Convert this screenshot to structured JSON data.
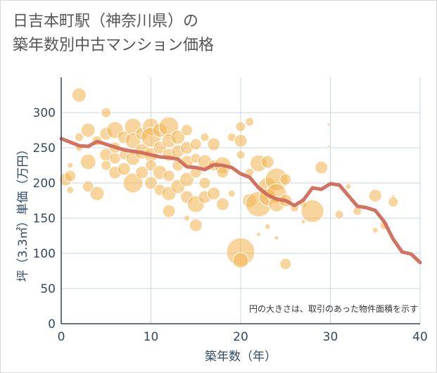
{
  "page": {
    "title_line1": "日吉本町駅（神奈川県）の",
    "title_line2": "築年数別中古マンション価格"
  },
  "chart_data": {
    "type": "scatter",
    "title": "日吉本町駅（神奈川県）の築年数別中古マンション価格",
    "xlabel": "築年数（年）",
    "ylabel": "坪（3.3㎡）単価（万円）",
    "xlim": [
      0,
      40
    ],
    "ylim": [
      0,
      350
    ],
    "x_ticks": [
      0,
      10,
      20,
      30,
      40
    ],
    "y_ticks": [
      0,
      50,
      100,
      150,
      200,
      250,
      300
    ],
    "grid": true,
    "annotation": "円の大きさは、取引のあった物件面積を示す",
    "colors": {
      "bubble": "#f2b95a",
      "trend": "#d06a5a",
      "grid": "#c9d6e3",
      "axis": "#2f4a66"
    },
    "series": [
      {
        "kind": "bubble",
        "points": [
          {
            "x": 0.5,
            "y": 205,
            "s": 9
          },
          {
            "x": 1,
            "y": 210,
            "s": 8
          },
          {
            "x": 1,
            "y": 225,
            "s": 4
          },
          {
            "x": 1,
            "y": 190,
            "s": 5
          },
          {
            "x": 2,
            "y": 325,
            "s": 10
          },
          {
            "x": 2,
            "y": 265,
            "s": 6
          },
          {
            "x": 2,
            "y": 250,
            "s": 5
          },
          {
            "x": 3,
            "y": 275,
            "s": 10
          },
          {
            "x": 3,
            "y": 230,
            "s": 11
          },
          {
            "x": 3,
            "y": 195,
            "s": 8
          },
          {
            "x": 4,
            "y": 260,
            "s": 7
          },
          {
            "x": 4,
            "y": 185,
            "s": 10
          },
          {
            "x": 5,
            "y": 300,
            "s": 7
          },
          {
            "x": 5,
            "y": 270,
            "s": 9
          },
          {
            "x": 5,
            "y": 240,
            "s": 9
          },
          {
            "x": 5,
            "y": 225,
            "s": 7
          },
          {
            "x": 6,
            "y": 275,
            "s": 12
          },
          {
            "x": 6,
            "y": 250,
            "s": 8
          },
          {
            "x": 6,
            "y": 235,
            "s": 8
          },
          {
            "x": 6,
            "y": 215,
            "s": 9
          },
          {
            "x": 7,
            "y": 265,
            "s": 9
          },
          {
            "x": 7,
            "y": 240,
            "s": 7
          },
          {
            "x": 7,
            "y": 220,
            "s": 9
          },
          {
            "x": 8,
            "y": 280,
            "s": 12
          },
          {
            "x": 8,
            "y": 260,
            "s": 11
          },
          {
            "x": 8,
            "y": 235,
            "s": 10
          },
          {
            "x": 8,
            "y": 200,
            "s": 14
          },
          {
            "x": 9,
            "y": 270,
            "s": 9
          },
          {
            "x": 9,
            "y": 245,
            "s": 11
          },
          {
            "x": 9,
            "y": 215,
            "s": 9
          },
          {
            "x": 10,
            "y": 280,
            "s": 12
          },
          {
            "x": 10,
            "y": 265,
            "s": 14
          },
          {
            "x": 10,
            "y": 240,
            "s": 10
          },
          {
            "x": 10,
            "y": 225,
            "s": 8
          },
          {
            "x": 10,
            "y": 200,
            "s": 9
          },
          {
            "x": 11,
            "y": 275,
            "s": 10
          },
          {
            "x": 11,
            "y": 250,
            "s": 9
          },
          {
            "x": 11,
            "y": 215,
            "s": 10
          },
          {
            "x": 11,
            "y": 190,
            "s": 8
          },
          {
            "x": 12,
            "y": 280,
            "s": 14
          },
          {
            "x": 12,
            "y": 260,
            "s": 10
          },
          {
            "x": 12,
            "y": 240,
            "s": 9
          },
          {
            "x": 12,
            "y": 210,
            "s": 8
          },
          {
            "x": 12,
            "y": 185,
            "s": 10
          },
          {
            "x": 12,
            "y": 160,
            "s": 9
          },
          {
            "x": 13,
            "y": 265,
            "s": 10
          },
          {
            "x": 13,
            "y": 245,
            "s": 9
          },
          {
            "x": 13,
            "y": 225,
            "s": 8
          },
          {
            "x": 13,
            "y": 195,
            "s": 10
          },
          {
            "x": 14,
            "y": 275,
            "s": 8
          },
          {
            "x": 14,
            "y": 250,
            "s": 9
          },
          {
            "x": 14,
            "y": 230,
            "s": 9
          },
          {
            "x": 14,
            "y": 205,
            "s": 10
          },
          {
            "x": 14,
            "y": 180,
            "s": 9
          },
          {
            "x": 14,
            "y": 150,
            "s": 4
          },
          {
            "x": 15,
            "y": 255,
            "s": 8
          },
          {
            "x": 15,
            "y": 235,
            "s": 7
          },
          {
            "x": 15,
            "y": 215,
            "s": 8
          },
          {
            "x": 15,
            "y": 170,
            "s": 12
          },
          {
            "x": 15,
            "y": 140,
            "s": 9
          },
          {
            "x": 16,
            "y": 265,
            "s": 6
          },
          {
            "x": 16,
            "y": 230,
            "s": 10
          },
          {
            "x": 16,
            "y": 200,
            "s": 8
          },
          {
            "x": 16,
            "y": 180,
            "s": 9
          },
          {
            "x": 17,
            "y": 255,
            "s": 9
          },
          {
            "x": 17,
            "y": 225,
            "s": 8
          },
          {
            "x": 17,
            "y": 185,
            "s": 9
          },
          {
            "x": 18,
            "y": 225,
            "s": 12
          },
          {
            "x": 18,
            "y": 215,
            "s": 8
          },
          {
            "x": 18,
            "y": 170,
            "s": 9
          },
          {
            "x": 19,
            "y": 265,
            "s": 6
          },
          {
            "x": 19,
            "y": 185,
            "s": 5
          },
          {
            "x": 20,
            "y": 280,
            "s": 7
          },
          {
            "x": 20,
            "y": 260,
            "s": 9
          },
          {
            "x": 20,
            "y": 240,
            "s": 6
          },
          {
            "x": 20,
            "y": 102,
            "s": 20
          },
          {
            "x": 20,
            "y": 90,
            "s": 11
          },
          {
            "x": 21,
            "y": 287,
            "s": 6
          },
          {
            "x": 21,
            "y": 215,
            "s": 6
          },
          {
            "x": 21,
            "y": 175,
            "s": 10
          },
          {
            "x": 22,
            "y": 228,
            "s": 12
          },
          {
            "x": 22,
            "y": 170,
            "s": 18
          },
          {
            "x": 22,
            "y": 127,
            "s": 3
          },
          {
            "x": 23,
            "y": 230,
            "s": 9
          },
          {
            "x": 23,
            "y": 195,
            "s": 13
          },
          {
            "x": 23,
            "y": 180,
            "s": 12
          },
          {
            "x": 23,
            "y": 138,
            "s": 4
          },
          {
            "x": 24,
            "y": 205,
            "s": 16
          },
          {
            "x": 24,
            "y": 185,
            "s": 14
          },
          {
            "x": 24,
            "y": 170,
            "s": 11
          },
          {
            "x": 24,
            "y": 122,
            "s": 3
          },
          {
            "x": 25,
            "y": 205,
            "s": 8
          },
          {
            "x": 25,
            "y": 175,
            "s": 9
          },
          {
            "x": 25,
            "y": 85,
            "s": 8
          },
          {
            "x": 26,
            "y": 165,
            "s": 6
          },
          {
            "x": 27,
            "y": 170,
            "s": 5
          },
          {
            "x": 27,
            "y": 145,
            "s": 3
          },
          {
            "x": 28,
            "y": 160,
            "s": 16
          },
          {
            "x": 29,
            "y": 222,
            "s": 9
          },
          {
            "x": 29.8,
            "y": 283,
            "s": 2
          },
          {
            "x": 29.8,
            "y": 252,
            "s": 2
          },
          {
            "x": 31,
            "y": 155,
            "s": 6
          },
          {
            "x": 32,
            "y": 195,
            "s": 4
          },
          {
            "x": 33,
            "y": 160,
            "s": 6
          },
          {
            "x": 35,
            "y": 182,
            "s": 9
          },
          {
            "x": 35,
            "y": 133,
            "s": 4
          },
          {
            "x": 36,
            "y": 140,
            "s": 6
          },
          {
            "x": 37,
            "y": 180,
            "s": 3
          },
          {
            "x": 37,
            "y": 173,
            "s": 7
          }
        ]
      },
      {
        "kind": "line",
        "points": [
          {
            "x": 0,
            "y": 263
          },
          {
            "x": 1,
            "y": 258
          },
          {
            "x": 2,
            "y": 253
          },
          {
            "x": 3,
            "y": 252
          },
          {
            "x": 4,
            "y": 259
          },
          {
            "x": 5,
            "y": 255
          },
          {
            "x": 6,
            "y": 251
          },
          {
            "x": 7,
            "y": 247
          },
          {
            "x": 8,
            "y": 245
          },
          {
            "x": 9,
            "y": 243
          },
          {
            "x": 10,
            "y": 240
          },
          {
            "x": 11,
            "y": 237
          },
          {
            "x": 12,
            "y": 236
          },
          {
            "x": 13,
            "y": 234
          },
          {
            "x": 14,
            "y": 223
          },
          {
            "x": 15,
            "y": 222
          },
          {
            "x": 16,
            "y": 219
          },
          {
            "x": 17,
            "y": 226
          },
          {
            "x": 18,
            "y": 225
          },
          {
            "x": 19,
            "y": 222
          },
          {
            "x": 20,
            "y": 213
          },
          {
            "x": 21,
            "y": 208
          },
          {
            "x": 22,
            "y": 193
          },
          {
            "x": 23,
            "y": 183
          },
          {
            "x": 24,
            "y": 177
          },
          {
            "x": 25,
            "y": 175
          },
          {
            "x": 26,
            "y": 168
          },
          {
            "x": 27,
            "y": 176
          },
          {
            "x": 28,
            "y": 193
          },
          {
            "x": 29,
            "y": 191
          },
          {
            "x": 30,
            "y": 199
          },
          {
            "x": 31,
            "y": 197
          },
          {
            "x": 32,
            "y": 182
          },
          {
            "x": 33,
            "y": 167
          },
          {
            "x": 34,
            "y": 165
          },
          {
            "x": 35,
            "y": 161
          },
          {
            "x": 36,
            "y": 145
          },
          {
            "x": 37,
            "y": 120
          },
          {
            "x": 38,
            "y": 102
          },
          {
            "x": 39,
            "y": 99
          },
          {
            "x": 40,
            "y": 87
          }
        ]
      }
    ]
  }
}
